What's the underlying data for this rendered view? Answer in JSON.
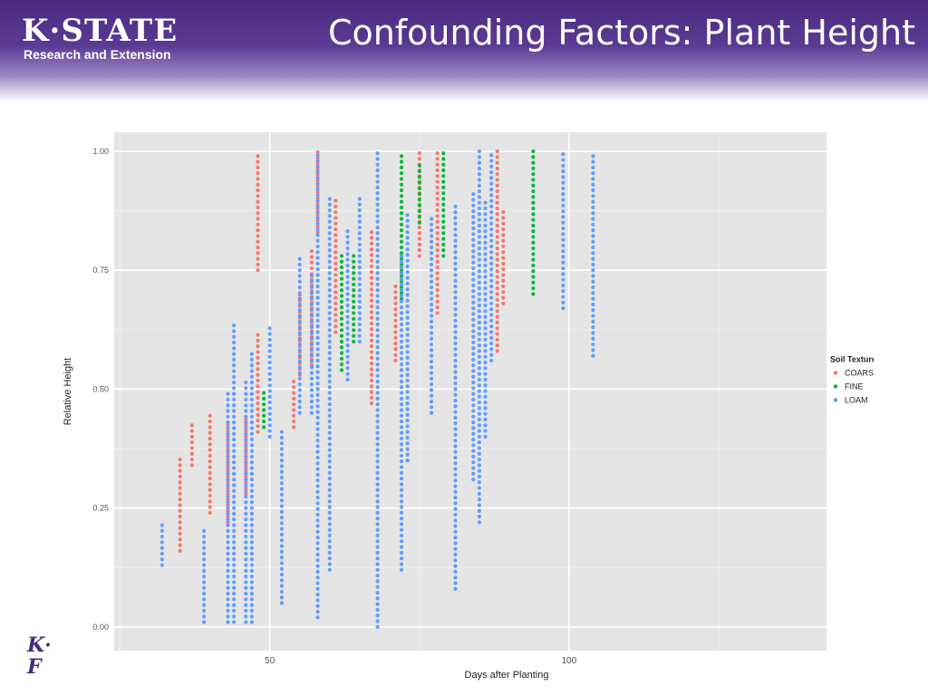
{
  "header": {
    "logo_main": "K·STATE",
    "logo_sub": "Research and Extension",
    "title": "Confounding Factors: Plant Height"
  },
  "colors": {
    "banner": "#4a2a80",
    "panel_bg": "#e5e5e5",
    "COARSE": "#f8766d",
    "FINE": "#00ba38",
    "LOAM": "#619cff"
  },
  "chart_data": {
    "type": "scatter",
    "title": "",
    "xlabel": "Days after Planting",
    "ylabel": "Relative Height",
    "xlim": [
      24,
      143
    ],
    "ylim": [
      -0.05,
      1.04
    ],
    "xticks": [
      50,
      100
    ],
    "yticks": [
      0.0,
      0.25,
      0.5,
      0.75,
      1.0
    ],
    "ytick_labels": [
      "0.00",
      "0.25",
      "0.50",
      "0.75",
      "1.00"
    ],
    "grid": true,
    "legend": {
      "title": "Soil Texture",
      "placement": "right"
    },
    "series": [
      {
        "name": "COARSE",
        "columns": [
          {
            "x": 35,
            "min": 0.16,
            "max": 0.36
          },
          {
            "x": 37,
            "min": 0.34,
            "max": 0.43
          },
          {
            "x": 40,
            "min": 0.24,
            "max": 0.45
          },
          {
            "x": 43,
            "min": 0.22,
            "max": 0.43
          },
          {
            "x": 46,
            "min": 0.28,
            "max": 0.44
          },
          {
            "x": 48,
            "min": 0.41,
            "max": 0.62
          },
          {
            "x": 48,
            "min": 0.75,
            "max": 1.0
          },
          {
            "x": 54,
            "min": 0.42,
            "max": 0.52
          },
          {
            "x": 55,
            "min": 0.53,
            "max": 0.7
          },
          {
            "x": 57,
            "min": 0.55,
            "max": 0.8
          },
          {
            "x": 58,
            "min": 0.83,
            "max": 1.0
          },
          {
            "x": 61,
            "min": 0.62,
            "max": 0.9
          },
          {
            "x": 67,
            "min": 0.47,
            "max": 0.83
          },
          {
            "x": 71,
            "min": 0.56,
            "max": 0.72
          },
          {
            "x": 75,
            "min": 0.78,
            "max": 1.0
          },
          {
            "x": 78,
            "min": 0.66,
            "max": 1.0
          },
          {
            "x": 88,
            "min": 0.58,
            "max": 1.0
          },
          {
            "x": 89,
            "min": 0.68,
            "max": 0.88
          }
        ]
      },
      {
        "name": "FINE",
        "columns": [
          {
            "x": 49,
            "min": 0.42,
            "max": 0.5
          },
          {
            "x": 62,
            "min": 0.54,
            "max": 0.79
          },
          {
            "x": 64,
            "min": 0.6,
            "max": 0.79
          },
          {
            "x": 72,
            "min": 0.69,
            "max": 1.0
          },
          {
            "x": 75,
            "min": 0.85,
            "max": 0.98
          },
          {
            "x": 79,
            "min": 0.78,
            "max": 1.0
          },
          {
            "x": 94,
            "min": 0.7,
            "max": 1.0
          }
        ]
      },
      {
        "name": "LOAM",
        "columns": [
          {
            "x": 32,
            "min": 0.13,
            "max": 0.22
          },
          {
            "x": 39,
            "min": 0.01,
            "max": 0.21
          },
          {
            "x": 43,
            "min": 0.01,
            "max": 0.5
          },
          {
            "x": 44,
            "min": 0.01,
            "max": 0.64
          },
          {
            "x": 46,
            "min": 0.01,
            "max": 0.52
          },
          {
            "x": 47,
            "min": 0.01,
            "max": 0.58
          },
          {
            "x": 50,
            "min": 0.4,
            "max": 0.63
          },
          {
            "x": 52,
            "min": 0.05,
            "max": 0.42
          },
          {
            "x": 55,
            "min": 0.45,
            "max": 0.78
          },
          {
            "x": 57,
            "min": 0.45,
            "max": 0.74
          },
          {
            "x": 58,
            "min": 0.02,
            "max": 1.0
          },
          {
            "x": 60,
            "min": 0.12,
            "max": 0.9
          },
          {
            "x": 63,
            "min": 0.52,
            "max": 0.84
          },
          {
            "x": 65,
            "min": 0.6,
            "max": 0.91
          },
          {
            "x": 68,
            "min": 0.0,
            "max": 1.0
          },
          {
            "x": 72,
            "min": 0.12,
            "max": 0.79
          },
          {
            "x": 73,
            "min": 0.35,
            "max": 0.87
          },
          {
            "x": 77,
            "min": 0.45,
            "max": 0.86
          },
          {
            "x": 81,
            "min": 0.08,
            "max": 0.89
          },
          {
            "x": 84,
            "min": 0.31,
            "max": 0.91
          },
          {
            "x": 85,
            "min": 0.22,
            "max": 1.0
          },
          {
            "x": 86,
            "min": 0.4,
            "max": 0.9
          },
          {
            "x": 87,
            "min": 0.56,
            "max": 1.0
          },
          {
            "x": 99,
            "min": 0.67,
            "max": 1.0
          },
          {
            "x": 104,
            "min": 0.57,
            "max": 1.0
          }
        ]
      }
    ]
  }
}
